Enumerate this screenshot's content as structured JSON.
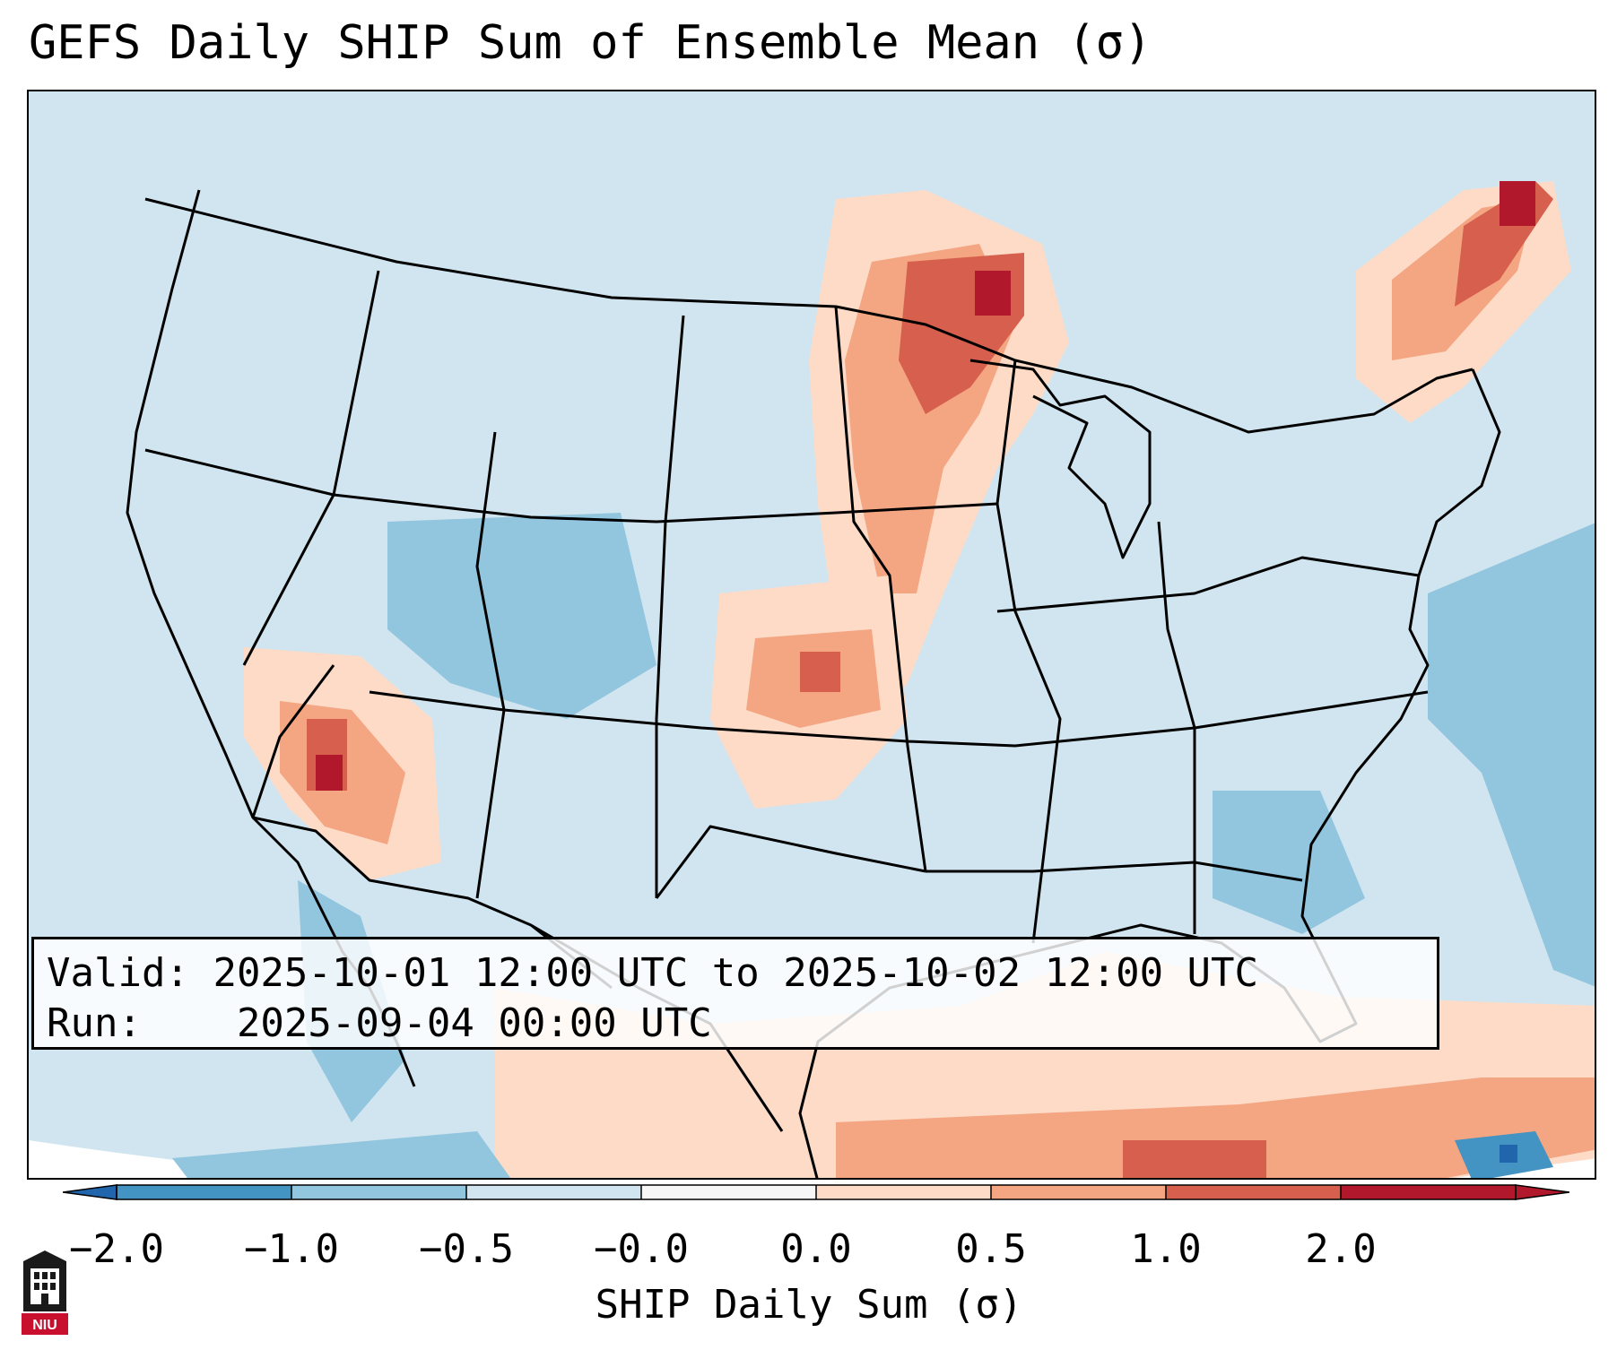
{
  "title": "GEFS Daily SHIP Sum of Ensemble Mean (σ)",
  "info": {
    "valid_label": "Valid:",
    "valid_value": "2025-10-01 12:00 UTC to 2025-10-02 12:00 UTC",
    "run_label": "Run:",
    "run_value": "2025-09-04 00:00 UTC"
  },
  "colorbar": {
    "title": "SHIP Daily Sum (σ)",
    "ticks": [
      "−2.0",
      "−1.0",
      "−0.5",
      "−0.0",
      "0.0",
      "0.5",
      "1.0",
      "2.0"
    ],
    "colors": [
      "#4393c3",
      "#92c5de",
      "#d1e5f0",
      "#f7f7f7",
      "#fddbc7",
      "#f4a582",
      "#d6604d",
      "#b2182b"
    ],
    "under_color": "#2166ac",
    "over_color": "#b2182b"
  },
  "logo": {
    "text": "NIU"
  },
  "palette": {
    "ocean_background": "#d1e5f0",
    "coastline": "#000000"
  },
  "icons": [
    "niu-seal-icon"
  ]
}
